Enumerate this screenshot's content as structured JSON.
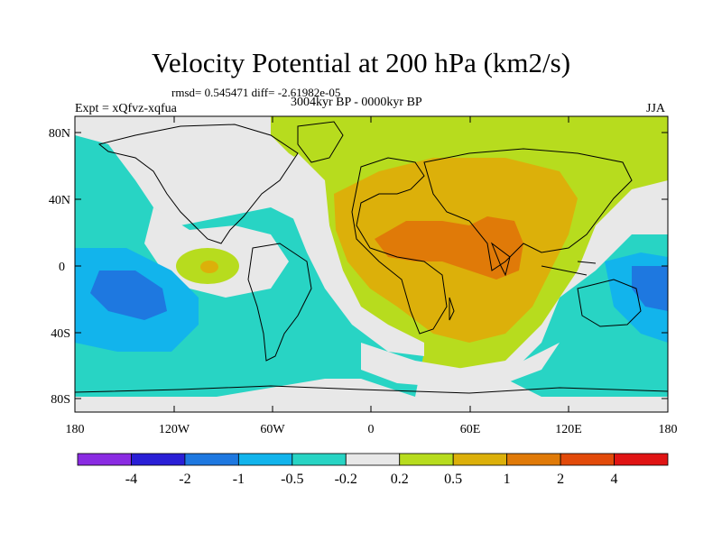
{
  "title": "Velocity Potential at 200 hPa (km2/s)",
  "stats": "rmsd= 0.545471 diff= -2.61982e-05",
  "experiment": "Expt = xQfvz-xqfua",
  "period": "3004kyr BP - 0000kyr BP",
  "season": "JJA",
  "lat_labels": [
    "80N",
    "40N",
    "0",
    "40S",
    "80S"
  ],
  "lon_labels": [
    "180",
    "120W",
    "60W",
    "0",
    "60E",
    "120E",
    "180"
  ],
  "colorbar": {
    "colors": [
      "#8a2be2",
      "#2a1fd6",
      "#1e78e0",
      "#12b4ec",
      "#28d4c4",
      "#e8e8e8",
      "#b7dc1e",
      "#dcb00a",
      "#e07a08",
      "#e24a0a",
      "#e01414"
    ],
    "labels": [
      "-4",
      "-2",
      "-1",
      "-0.5",
      "-0.2",
      "0.2",
      "0.5",
      "1",
      "2",
      "4"
    ]
  },
  "map_colors": {
    "ocean_neutral": "#e8e8e8",
    "pos_low": "#b7dc1e",
    "pos_mid": "#dcb00a",
    "pos_high": "#e07a08",
    "neg_low": "#28d4c4",
    "neg_mid": "#12b4ec",
    "neg_high": "#1e78e0",
    "coast": "#000000"
  }
}
